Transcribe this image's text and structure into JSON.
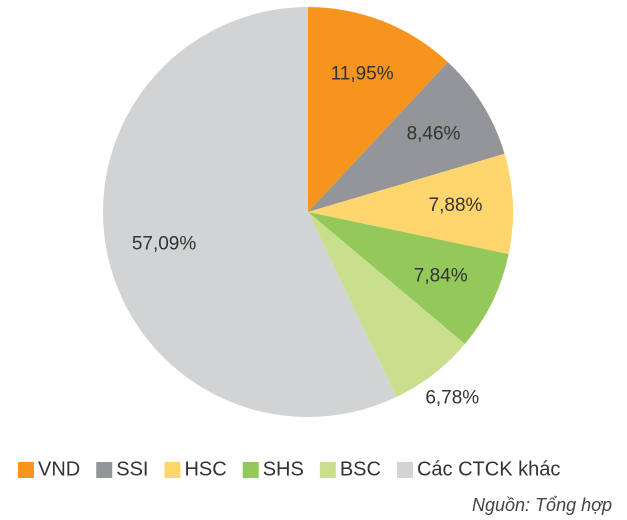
{
  "chart_data": {
    "type": "pie",
    "categories": [
      "VND",
      "SSI",
      "HSC",
      "SHS",
      "BSC",
      "Các CTCK khác"
    ],
    "values": [
      11.95,
      8.46,
      7.88,
      7.84,
      6.78,
      57.09
    ],
    "value_labels": [
      "11,95%",
      "8,46%",
      "7,88%",
      "7,84%",
      "6,78%",
      "57,09%"
    ],
    "colors": [
      "#f7941d",
      "#939598",
      "#ffd56e",
      "#92c95a",
      "#c9df8e",
      "#d1d3d4"
    ],
    "legend": "bottom",
    "source": "Nguồn: Tổng hợp"
  }
}
